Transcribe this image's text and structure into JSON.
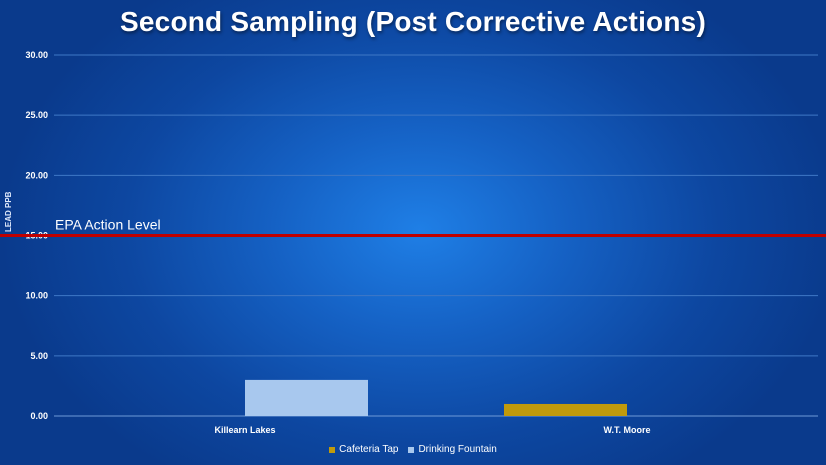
{
  "chart_data": {
    "type": "bar",
    "title": "Second Sampling (Post Corrective Actions)",
    "ylabel": "LEAD PPB",
    "xlabel": "",
    "categories": [
      "Killearn Lakes",
      "W.T. Moore"
    ],
    "series": [
      {
        "name": "Cafeteria Tap",
        "color": "#c09a0c",
        "values": [
          0,
          1
        ]
      },
      {
        "name": "Drinking Fountain",
        "color": "#a8c8ee",
        "values": [
          3,
          0
        ]
      }
    ],
    "ylim": [
      0,
      30
    ],
    "yticks": [
      "0.00",
      "5.00",
      "10.00",
      "15.00",
      "20.00",
      "25.00",
      "30.00"
    ],
    "grid": true,
    "legend_position": "bottom",
    "reference_line": {
      "label": "EPA Action Level",
      "value": 15,
      "color": "#c00000"
    }
  }
}
